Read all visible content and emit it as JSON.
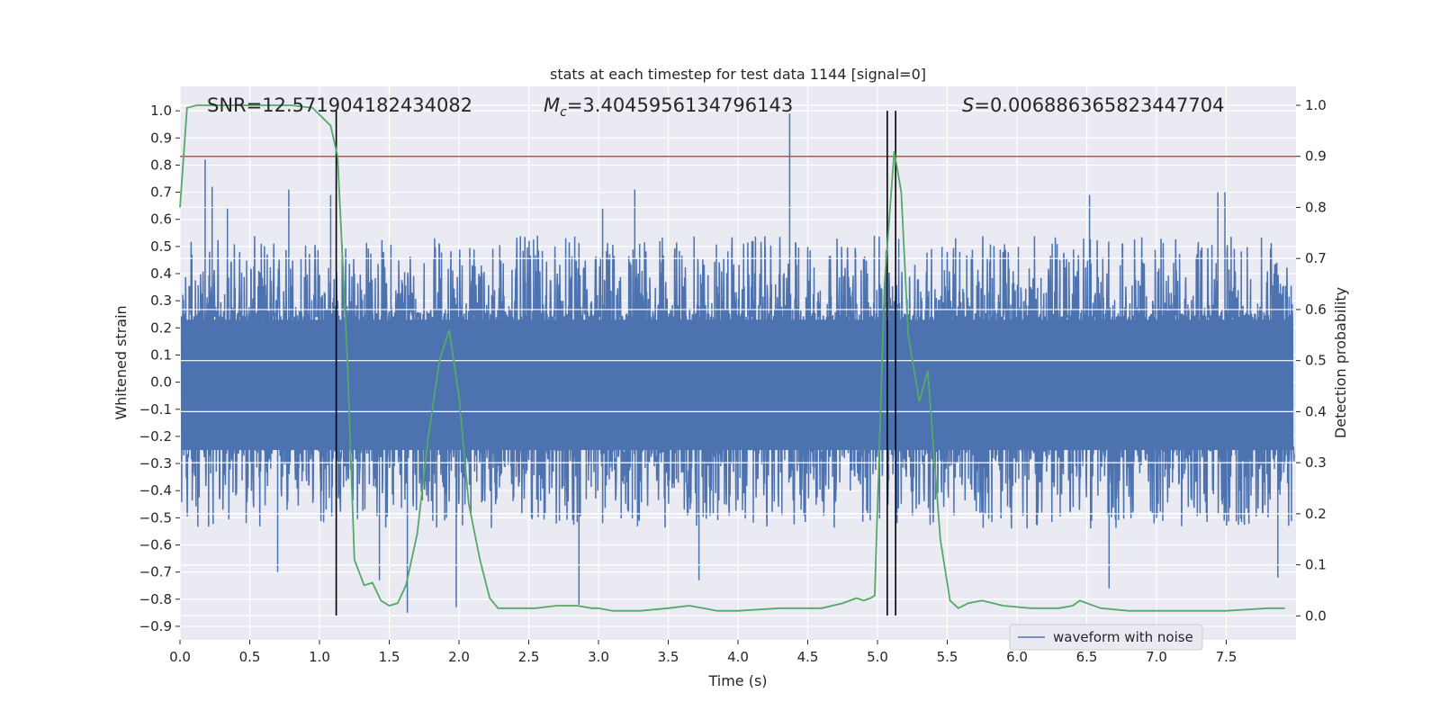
{
  "chart_data": {
    "type": "line",
    "title": "stats at each timestep for test data 1144 [signal=0]",
    "xlabel": "Time (s)",
    "ylabel": "Whitened strain",
    "y2label": "Detection probability",
    "xlim": [
      0,
      8.0
    ],
    "ylim": [
      -0.95,
      1.09
    ],
    "y2lim": [
      -0.047,
      1.037
    ],
    "x_ticks": [
      0.0,
      0.5,
      1.0,
      1.5,
      2.0,
      2.5,
      3.0,
      3.5,
      4.0,
      4.5,
      5.0,
      5.5,
      6.0,
      6.5,
      7.0,
      7.5
    ],
    "x_tick_labels": [
      "0.0",
      "0.5",
      "1.0",
      "1.5",
      "2.0",
      "2.5",
      "3.0",
      "3.5",
      "4.0",
      "4.5",
      "5.0",
      "5.5",
      "6.0",
      "6.5",
      "7.0",
      "7.5"
    ],
    "y_ticks": [
      -0.9,
      -0.8,
      -0.7,
      -0.6,
      -0.5,
      -0.4,
      -0.3,
      -0.2,
      -0.1,
      0.0,
      0.1,
      0.2,
      0.3,
      0.4,
      0.5,
      0.6,
      0.7,
      0.8,
      0.9,
      1.0
    ],
    "y_tick_labels": [
      "−0.9",
      "−0.8",
      "−0.7",
      "−0.6",
      "−0.5",
      "−0.4",
      "−0.3",
      "−0.2",
      "−0.1",
      "0.0",
      "0.1",
      "0.2",
      "0.3",
      "0.4",
      "0.5",
      "0.6",
      "0.7",
      "0.8",
      "0.9",
      "1.0"
    ],
    "y2_ticks": [
      0.0,
      0.1,
      0.2,
      0.3,
      0.4,
      0.5,
      0.6,
      0.7,
      0.8,
      0.9,
      1.0
    ],
    "y2_tick_labels": [
      "0.0",
      "0.1",
      "0.2",
      "0.3",
      "0.4",
      "0.5",
      "0.6",
      "0.7",
      "0.8",
      "0.9",
      "1.0"
    ],
    "grid": true,
    "legend": {
      "position": "lower-right",
      "entries": [
        "waveform with noise"
      ]
    },
    "annotations": {
      "snr": "SNR=12.571904182434082",
      "mc_symbol": "M",
      "mc_sub": "c",
      "mc_value": "=3.4045956134796143",
      "s_symbol": "S",
      "s_value": "=0.006886365823447704"
    },
    "waveform": {
      "name": "waveform with noise",
      "color": "#4c72b0",
      "sample_step": 0.0025,
      "envelope_upper": 0.45,
      "envelope_lower": -0.42,
      "peaks": [
        {
          "x": 0.18,
          "y": 0.82
        },
        {
          "x": 0.23,
          "y": 0.72
        },
        {
          "x": 0.34,
          "y": 0.64
        },
        {
          "x": 0.78,
          "y": 0.71
        },
        {
          "x": 1.08,
          "y": 0.69
        },
        {
          "x": 3.03,
          "y": 0.64
        },
        {
          "x": 3.26,
          "y": 0.71
        },
        {
          "x": 4.37,
          "y": 0.99
        },
        {
          "x": 6.52,
          "y": 0.69
        },
        {
          "x": 7.44,
          "y": 0.7
        },
        {
          "x": 7.49,
          "y": 0.7
        },
        {
          "x": 0.7,
          "y": -0.7
        },
        {
          "x": 1.63,
          "y": -0.85
        },
        {
          "x": 1.98,
          "y": -0.83
        },
        {
          "x": 2.86,
          "y": -0.82
        },
        {
          "x": 3.72,
          "y": -0.73
        },
        {
          "x": 6.66,
          "y": -0.76
        },
        {
          "x": 7.87,
          "y": -0.72
        },
        {
          "x": 1.43,
          "y": -0.73
        }
      ]
    },
    "detection_probability": {
      "color": "#55a868",
      "x": [
        0.0,
        0.05,
        0.12,
        0.2,
        0.35,
        0.5,
        0.65,
        0.8,
        0.95,
        1.08,
        1.13,
        1.2,
        1.25,
        1.32,
        1.38,
        1.44,
        1.5,
        1.56,
        1.62,
        1.7,
        1.78,
        1.86,
        1.93,
        2.0,
        2.07,
        2.15,
        2.22,
        2.28,
        2.4,
        2.55,
        2.7,
        2.85,
        2.95,
        3.0,
        3.1,
        3.3,
        3.5,
        3.65,
        3.75,
        3.85,
        4.0,
        4.3,
        4.6,
        4.75,
        4.85,
        4.9,
        4.95,
        4.98,
        5.05,
        5.12,
        5.17,
        5.22,
        5.3,
        5.36,
        5.45,
        5.52,
        5.58,
        5.65,
        5.75,
        5.9,
        6.1,
        6.3,
        6.4,
        6.45,
        6.5,
        6.6,
        6.8,
        7.2,
        7.5,
        7.8,
        7.92
      ],
      "y": [
        0.8,
        0.995,
        1.0,
        1.0,
        1.0,
        1.0,
        1.0,
        1.0,
        0.995,
        0.96,
        0.9,
        0.5,
        0.11,
        0.06,
        0.065,
        0.03,
        0.02,
        0.025,
        0.06,
        0.16,
        0.35,
        0.5,
        0.56,
        0.43,
        0.22,
        0.11,
        0.035,
        0.015,
        0.015,
        0.015,
        0.02,
        0.02,
        0.015,
        0.015,
        0.01,
        0.01,
        0.015,
        0.02,
        0.015,
        0.01,
        0.01,
        0.015,
        0.015,
        0.025,
        0.035,
        0.03,
        0.035,
        0.04,
        0.65,
        0.91,
        0.83,
        0.55,
        0.42,
        0.48,
        0.15,
        0.03,
        0.015,
        0.025,
        0.03,
        0.02,
        0.015,
        0.015,
        0.02,
        0.03,
        0.025,
        0.015,
        0.01,
        0.01,
        0.01,
        0.015,
        0.015
      ]
    },
    "threshold": {
      "y2": 0.9,
      "color": "#c44e52"
    },
    "vlines": [
      1.12,
      5.07,
      5.13
    ]
  }
}
